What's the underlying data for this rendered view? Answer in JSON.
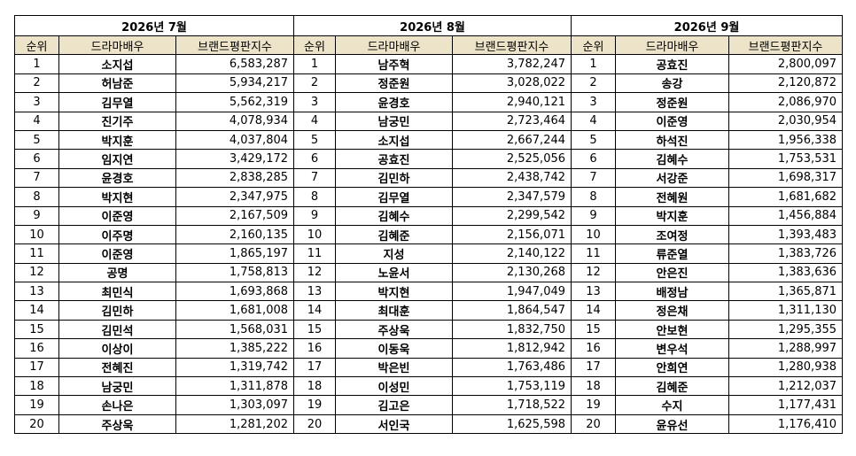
{
  "headers": {
    "rank": "순위",
    "actor": "드라마배우",
    "score": "브랜드평판지수"
  },
  "panels": [
    {
      "title": "2026년 7월",
      "rows": [
        [
          "1",
          "소지섭",
          "6,583,287"
        ],
        [
          "2",
          "허남준",
          "5,934,217"
        ],
        [
          "3",
          "김무열",
          "5,562,319"
        ],
        [
          "4",
          "진기주",
          "4,078,934"
        ],
        [
          "5",
          "박지훈",
          "4,037,804"
        ],
        [
          "6",
          "임지연",
          "3,429,172"
        ],
        [
          "7",
          "윤경호",
          "2,838,285"
        ],
        [
          "8",
          "박지현",
          "2,347,975"
        ],
        [
          "9",
          "이준영",
          "2,167,509"
        ],
        [
          "10",
          "이주명",
          "2,160,135"
        ],
        [
          "11",
          "이준영",
          "1,865,197"
        ],
        [
          "12",
          "공명",
          "1,758,813"
        ],
        [
          "13",
          "최민식",
          "1,693,868"
        ],
        [
          "14",
          "김민하",
          "1,681,008"
        ],
        [
          "15",
          "김민석",
          "1,568,031"
        ],
        [
          "16",
          "이상이",
          "1,385,222"
        ],
        [
          "17",
          "전혜진",
          "1,319,742"
        ],
        [
          "18",
          "남궁민",
          "1,311,878"
        ],
        [
          "19",
          "손나은",
          "1,303,097"
        ],
        [
          "20",
          "주상욱",
          "1,281,202"
        ]
      ]
    },
    {
      "title": "2026년 8월",
      "rows": [
        [
          "1",
          "남주혁",
          "3,782,247"
        ],
        [
          "2",
          "정준원",
          "3,028,022"
        ],
        [
          "3",
          "윤경호",
          "2,940,121"
        ],
        [
          "4",
          "남궁민",
          "2,723,464"
        ],
        [
          "5",
          "소지섭",
          "2,667,244"
        ],
        [
          "6",
          "공효진",
          "2,525,056"
        ],
        [
          "7",
          "김민하",
          "2,438,742"
        ],
        [
          "8",
          "김무열",
          "2,347,579"
        ],
        [
          "9",
          "김혜수",
          "2,299,542"
        ],
        [
          "10",
          "김혜준",
          "2,156,071"
        ],
        [
          "11",
          "지성",
          "2,140,122"
        ],
        [
          "12",
          "노윤서",
          "2,130,268"
        ],
        [
          "13",
          "박지현",
          "1,947,049"
        ],
        [
          "14",
          "최대훈",
          "1,864,547"
        ],
        [
          "15",
          "주상욱",
          "1,832,750"
        ],
        [
          "16",
          "이동욱",
          "1,812,942"
        ],
        [
          "17",
          "박은빈",
          "1,763,486"
        ],
        [
          "18",
          "이성민",
          "1,753,119"
        ],
        [
          "19",
          "김고은",
          "1,718,522"
        ],
        [
          "20",
          "서인국",
          "1,625,598"
        ]
      ]
    },
    {
      "title": "2026년 9월",
      "rows": [
        [
          "1",
          "공효진",
          "2,800,097"
        ],
        [
          "2",
          "송강",
          "2,120,872"
        ],
        [
          "3",
          "정준원",
          "2,086,970"
        ],
        [
          "4",
          "이준영",
          "2,030,954"
        ],
        [
          "5",
          "하석진",
          "1,956,338"
        ],
        [
          "6",
          "김혜수",
          "1,753,531"
        ],
        [
          "7",
          "서강준",
          "1,698,317"
        ],
        [
          "8",
          "전혜원",
          "1,681,682"
        ],
        [
          "9",
          "박지훈",
          "1,456,884"
        ],
        [
          "10",
          "조여정",
          "1,393,483"
        ],
        [
          "11",
          "류준열",
          "1,383,726"
        ],
        [
          "12",
          "안은진",
          "1,383,636"
        ],
        [
          "13",
          "배정남",
          "1,365,871"
        ],
        [
          "14",
          "정은채",
          "1,311,130"
        ],
        [
          "15",
          "안보현",
          "1,295,355"
        ],
        [
          "16",
          "변우석",
          "1,288,997"
        ],
        [
          "17",
          "안희연",
          "1,280,938"
        ],
        [
          "18",
          "김혜준",
          "1,212,037"
        ],
        [
          "19",
          "수지",
          "1,177,431"
        ],
        [
          "20",
          "윤유선",
          "1,176,410"
        ]
      ]
    }
  ]
}
